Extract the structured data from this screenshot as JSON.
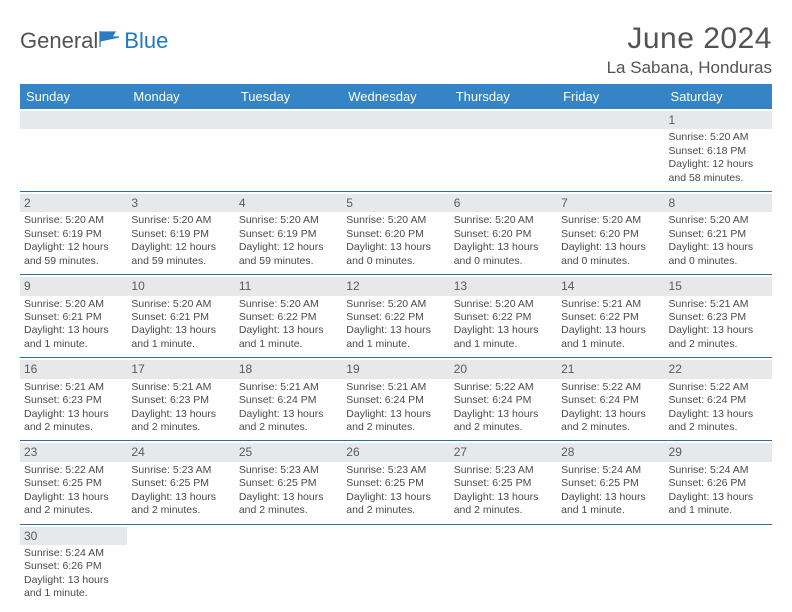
{
  "brand": {
    "part1": "General",
    "part2": "Blue"
  },
  "title": "June 2024",
  "location": "La Sabana, Honduras",
  "colors": {
    "header_bg": "#3585c6",
    "header_text": "#ffffff",
    "row_divider": "#2c6fa8",
    "daynum_bg": "#e7e8e9",
    "text": "#4a4a4a",
    "brand_gray": "#535353",
    "brand_blue": "#2377bc",
    "flag_fill": "#2a7cbf"
  },
  "weekdays": [
    "Sunday",
    "Monday",
    "Tuesday",
    "Wednesday",
    "Thursday",
    "Friday",
    "Saturday"
  ],
  "weeks": [
    [
      null,
      null,
      null,
      null,
      null,
      null,
      {
        "n": "1",
        "sr": "Sunrise: 5:20 AM",
        "ss": "Sunset: 6:18 PM",
        "dl": "Daylight: 12 hours and 58 minutes."
      }
    ],
    [
      {
        "n": "2",
        "sr": "Sunrise: 5:20 AM",
        "ss": "Sunset: 6:19 PM",
        "dl": "Daylight: 12 hours and 59 minutes."
      },
      {
        "n": "3",
        "sr": "Sunrise: 5:20 AM",
        "ss": "Sunset: 6:19 PM",
        "dl": "Daylight: 12 hours and 59 minutes."
      },
      {
        "n": "4",
        "sr": "Sunrise: 5:20 AM",
        "ss": "Sunset: 6:19 PM",
        "dl": "Daylight: 12 hours and 59 minutes."
      },
      {
        "n": "5",
        "sr": "Sunrise: 5:20 AM",
        "ss": "Sunset: 6:20 PM",
        "dl": "Daylight: 13 hours and 0 minutes."
      },
      {
        "n": "6",
        "sr": "Sunrise: 5:20 AM",
        "ss": "Sunset: 6:20 PM",
        "dl": "Daylight: 13 hours and 0 minutes."
      },
      {
        "n": "7",
        "sr": "Sunrise: 5:20 AM",
        "ss": "Sunset: 6:20 PM",
        "dl": "Daylight: 13 hours and 0 minutes."
      },
      {
        "n": "8",
        "sr": "Sunrise: 5:20 AM",
        "ss": "Sunset: 6:21 PM",
        "dl": "Daylight: 13 hours and 0 minutes."
      }
    ],
    [
      {
        "n": "9",
        "sr": "Sunrise: 5:20 AM",
        "ss": "Sunset: 6:21 PM",
        "dl": "Daylight: 13 hours and 1 minute."
      },
      {
        "n": "10",
        "sr": "Sunrise: 5:20 AM",
        "ss": "Sunset: 6:21 PM",
        "dl": "Daylight: 13 hours and 1 minute."
      },
      {
        "n": "11",
        "sr": "Sunrise: 5:20 AM",
        "ss": "Sunset: 6:22 PM",
        "dl": "Daylight: 13 hours and 1 minute."
      },
      {
        "n": "12",
        "sr": "Sunrise: 5:20 AM",
        "ss": "Sunset: 6:22 PM",
        "dl": "Daylight: 13 hours and 1 minute."
      },
      {
        "n": "13",
        "sr": "Sunrise: 5:20 AM",
        "ss": "Sunset: 6:22 PM",
        "dl": "Daylight: 13 hours and 1 minute."
      },
      {
        "n": "14",
        "sr": "Sunrise: 5:21 AM",
        "ss": "Sunset: 6:22 PM",
        "dl": "Daylight: 13 hours and 1 minute."
      },
      {
        "n": "15",
        "sr": "Sunrise: 5:21 AM",
        "ss": "Sunset: 6:23 PM",
        "dl": "Daylight: 13 hours and 2 minutes."
      }
    ],
    [
      {
        "n": "16",
        "sr": "Sunrise: 5:21 AM",
        "ss": "Sunset: 6:23 PM",
        "dl": "Daylight: 13 hours and 2 minutes."
      },
      {
        "n": "17",
        "sr": "Sunrise: 5:21 AM",
        "ss": "Sunset: 6:23 PM",
        "dl": "Daylight: 13 hours and 2 minutes."
      },
      {
        "n": "18",
        "sr": "Sunrise: 5:21 AM",
        "ss": "Sunset: 6:24 PM",
        "dl": "Daylight: 13 hours and 2 minutes."
      },
      {
        "n": "19",
        "sr": "Sunrise: 5:21 AM",
        "ss": "Sunset: 6:24 PM",
        "dl": "Daylight: 13 hours and 2 minutes."
      },
      {
        "n": "20",
        "sr": "Sunrise: 5:22 AM",
        "ss": "Sunset: 6:24 PM",
        "dl": "Daylight: 13 hours and 2 minutes."
      },
      {
        "n": "21",
        "sr": "Sunrise: 5:22 AM",
        "ss": "Sunset: 6:24 PM",
        "dl": "Daylight: 13 hours and 2 minutes."
      },
      {
        "n": "22",
        "sr": "Sunrise: 5:22 AM",
        "ss": "Sunset: 6:24 PM",
        "dl": "Daylight: 13 hours and 2 minutes."
      }
    ],
    [
      {
        "n": "23",
        "sr": "Sunrise: 5:22 AM",
        "ss": "Sunset: 6:25 PM",
        "dl": "Daylight: 13 hours and 2 minutes."
      },
      {
        "n": "24",
        "sr": "Sunrise: 5:23 AM",
        "ss": "Sunset: 6:25 PM",
        "dl": "Daylight: 13 hours and 2 minutes."
      },
      {
        "n": "25",
        "sr": "Sunrise: 5:23 AM",
        "ss": "Sunset: 6:25 PM",
        "dl": "Daylight: 13 hours and 2 minutes."
      },
      {
        "n": "26",
        "sr": "Sunrise: 5:23 AM",
        "ss": "Sunset: 6:25 PM",
        "dl": "Daylight: 13 hours and 2 minutes."
      },
      {
        "n": "27",
        "sr": "Sunrise: 5:23 AM",
        "ss": "Sunset: 6:25 PM",
        "dl": "Daylight: 13 hours and 2 minutes."
      },
      {
        "n": "28",
        "sr": "Sunrise: 5:24 AM",
        "ss": "Sunset: 6:25 PM",
        "dl": "Daylight: 13 hours and 1 minute."
      },
      {
        "n": "29",
        "sr": "Sunrise: 5:24 AM",
        "ss": "Sunset: 6:26 PM",
        "dl": "Daylight: 13 hours and 1 minute."
      }
    ],
    [
      {
        "n": "30",
        "sr": "Sunrise: 5:24 AM",
        "ss": "Sunset: 6:26 PM",
        "dl": "Daylight: 13 hours and 1 minute."
      },
      null,
      null,
      null,
      null,
      null,
      null
    ]
  ]
}
